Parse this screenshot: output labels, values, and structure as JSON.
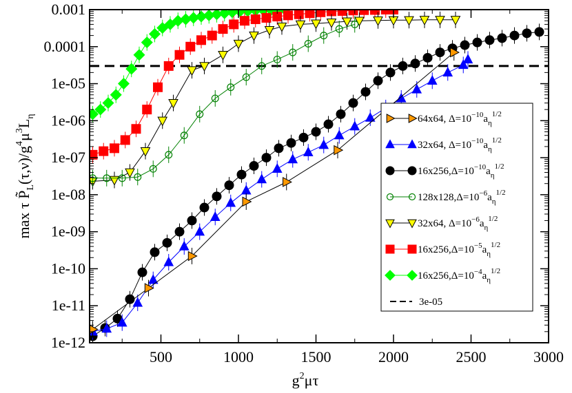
{
  "chart_data": {
    "type": "scatter",
    "xlabel": {
      "base": "g",
      "sup": "2",
      "rest": "μτ"
    },
    "ylabel": {
      "text": "max τ P̃",
      "sub1": "L",
      "mid": "(τ,ν)/g",
      "sup1": "4",
      "mid2": "μ",
      "sup2": "3",
      "end": "L",
      "sub2": "η"
    },
    "xlim": [
      40,
      3000
    ],
    "ylim_log10": [
      -12,
      -3
    ],
    "x_ticks": [
      500,
      1000,
      1500,
      2000,
      2500,
      3000
    ],
    "x_tick_labels": [
      "500",
      "1000",
      "1500",
      "2000",
      "2500",
      "3000"
    ],
    "y_ticks_log10": [
      -12,
      -11,
      -10,
      -9,
      -8,
      -7,
      -6,
      -5,
      -4,
      -3
    ],
    "y_tick_labels": [
      "1e-12",
      "1e-11",
      "1e-10",
      "1e-09",
      "1e-08",
      "1e-07",
      "1e-06",
      "1e-05",
      "0.0001",
      "0.001"
    ],
    "threshold": {
      "value": 3e-05,
      "label": "3e-05",
      "color": "#000000"
    },
    "legend_position": "right",
    "series": [
      {
        "name": "64x64",
        "delta_exp": "-10",
        "marker": "triangle-right",
        "color": "#ff9900",
        "edge": "#000000",
        "x": [
          60,
          420,
          700,
          1050,
          1310,
          1640,
          2390
        ],
        "y": [
          2.3e-12,
          3e-11,
          2.2e-10,
          6.5e-09,
          2.2e-08,
          1.6e-07,
          7e-05
        ]
      },
      {
        "name": "32x64",
        "delta_exp": "-10",
        "marker": "triangle-up",
        "color": "#0000ff",
        "edge": "#0000ff",
        "x": [
          60,
          150,
          250,
          350,
          450,
          550,
          650,
          750,
          850,
          950,
          1050,
          1150,
          1250,
          1350,
          1450,
          1550,
          1650,
          1750,
          1850,
          1950,
          2050,
          2150,
          2250,
          2350,
          2450,
          2480
        ],
        "y": [
          2e-12,
          2.4e-12,
          3.5e-12,
          1.2e-11,
          5e-11,
          1.5e-10,
          4e-10,
          1e-09,
          2.5e-09,
          6e-09,
          1.3e-08,
          2.6e-08,
          5e-08,
          9e-08,
          1.4e-07,
          2.2e-07,
          4e-07,
          7e-07,
          1.2e-06,
          2.2e-06,
          4e-06,
          7e-06,
          1.2e-05,
          2e-05,
          3.2e-05,
          4.5e-05
        ]
      },
      {
        "name": "16x256",
        "delta_exp": "-10",
        "marker": "circle",
        "color": "#000000",
        "edge": "#000000",
        "x": [
          60,
          140,
          220,
          300,
          380,
          460,
          540,
          620,
          700,
          780,
          860,
          940,
          1020,
          1100,
          1180,
          1260,
          1340,
          1420,
          1500,
          1580,
          1660,
          1740,
          1820,
          1900,
          1980,
          2060,
          2140,
          2220,
          2300,
          2380,
          2460,
          2540,
          2620,
          2700,
          2780,
          2860,
          2940
        ],
        "y": [
          1.5e-12,
          2.5e-12,
          4.5e-12,
          1.5e-11,
          8e-11,
          2.8e-10,
          5e-10,
          1e-09,
          2e-09,
          4.5e-09,
          9e-09,
          1.8e-08,
          3.5e-08,
          6e-08,
          1e-07,
          1.8e-07,
          2.5e-07,
          3.5e-07,
          5e-07,
          8e-07,
          1.5e-06,
          3e-06,
          6e-06,
          1.2e-05,
          2e-05,
          3e-05,
          3.5e-05,
          5e-05,
          7e-05,
          9e-05,
          0.00011,
          0.00013,
          0.00015,
          0.00017,
          0.0002,
          0.00023,
          0.00025
        ]
      },
      {
        "name": "128x128",
        "delta_exp": "-6",
        "marker": "circle-open",
        "color": "#008000",
        "edge": "#008000",
        "x": [
          60,
          150,
          250,
          350,
          450,
          550,
          650,
          750,
          850,
          950,
          1050,
          1150,
          1250,
          1350,
          1450,
          1550,
          1650,
          1750
        ],
        "y": [
          2.8e-08,
          2.8e-08,
          2.8e-08,
          3e-08,
          5e-08,
          1.2e-07,
          4e-07,
          1.5e-06,
          4e-06,
          8e-06,
          1.5e-05,
          3e-05,
          4.5e-05,
          7e-05,
          0.00012,
          0.0002,
          0.0003,
          0.0004
        ]
      },
      {
        "name": "32x64",
        "delta_exp": "-6",
        "marker": "triangle-down",
        "color": "#ffff00",
        "edge": "#000000",
        "x": [
          60,
          200,
          300,
          400,
          510,
          580,
          700,
          780,
          900,
          1000,
          1100,
          1200,
          1280,
          1400,
          1500,
          1600,
          1700,
          1780,
          1900,
          2000,
          2100,
          2200,
          2300,
          2400
        ],
        "y": [
          2.3e-08,
          2.5e-08,
          4e-08,
          1.5e-07,
          1e-06,
          3e-06,
          2.3e-05,
          3e-05,
          6e-05,
          0.00012,
          0.0002,
          0.00028,
          0.00035,
          0.0004,
          0.00042,
          0.00045,
          0.00048,
          0.0005,
          0.00051,
          0.00052,
          0.00052,
          0.00053,
          0.00053,
          0.00053
        ]
      },
      {
        "name": "16x256",
        "delta_exp": "-5",
        "marker": "square",
        "color": "#ff0000",
        "edge": "#ff0000",
        "x": [
          60,
          130,
          200,
          270,
          340,
          410,
          480,
          550,
          620,
          690,
          760,
          830,
          900,
          970,
          1040,
          1110,
          1180,
          1250,
          1320,
          1390,
          1460,
          1530,
          1600,
          1670,
          1740,
          1810,
          1880,
          1950,
          2000
        ],
        "y": [
          1.2e-07,
          1.5e-07,
          1.8e-07,
          3e-07,
          6e-07,
          2e-06,
          8e-06,
          3e-05,
          6e-05,
          0.0001,
          0.00015,
          0.0002,
          0.0003,
          0.0004,
          0.0005,
          0.00055,
          0.0006,
          0.00065,
          0.0007,
          0.00075,
          0.0008,
          0.00085,
          0.0009,
          0.00092,
          0.00095,
          0.00097,
          0.00098,
          0.001,
          0.001
        ]
      },
      {
        "name": "16x256",
        "delta_exp": "-4",
        "marker": "diamond",
        "color": "#00ff00",
        "edge": "#00ff00",
        "x": [
          60,
          110,
          160,
          210,
          260,
          310,
          360,
          410,
          460,
          510,
          560,
          610,
          660,
          710,
          760,
          810,
          860,
          910,
          960,
          1010,
          1060,
          1110,
          1160,
          1210,
          1260,
          1300
        ],
        "y": [
          1.5e-06,
          2e-06,
          3e-06,
          5e-06,
          1e-05,
          2.5e-05,
          6e-05,
          0.00013,
          0.00022,
          0.00032,
          0.0004,
          0.0005,
          0.00055,
          0.0006,
          0.00065,
          0.0007,
          0.00075,
          0.0008,
          0.00085,
          0.0009,
          0.00092,
          0.00095,
          0.00097,
          0.00098,
          0.001,
          0.001
        ]
      }
    ],
    "legend": [
      {
        "main": "64x64, Δ=10",
        "exp": "−10",
        "tail": "a",
        "sub": "η",
        "sup": "1/2"
      },
      {
        "main": "32x64, Δ=10",
        "exp": "−10",
        "tail": "a",
        "sub": "η",
        "sup": "1/2"
      },
      {
        "main": "16x256,Δ=10",
        "exp": "−10",
        "tail": "a",
        "sub": "η",
        "sup": "1/2"
      },
      {
        "main": "128x128,Δ=10",
        "exp": "−6",
        "tail": "a",
        "sub": "η",
        "sup": "1/2"
      },
      {
        "main": "32x64, Δ=10",
        "exp": "−6",
        "tail": "a",
        "sub": "η",
        "sup": "1/2"
      },
      {
        "main": "16x256,Δ=10",
        "exp": "−5",
        "tail": "a",
        "sub": "η",
        "sup": "1/2"
      },
      {
        "main": "16x256,Δ=10",
        "exp": "−4",
        "tail": "a",
        "sub": "η",
        "sup": "1/2"
      }
    ]
  }
}
